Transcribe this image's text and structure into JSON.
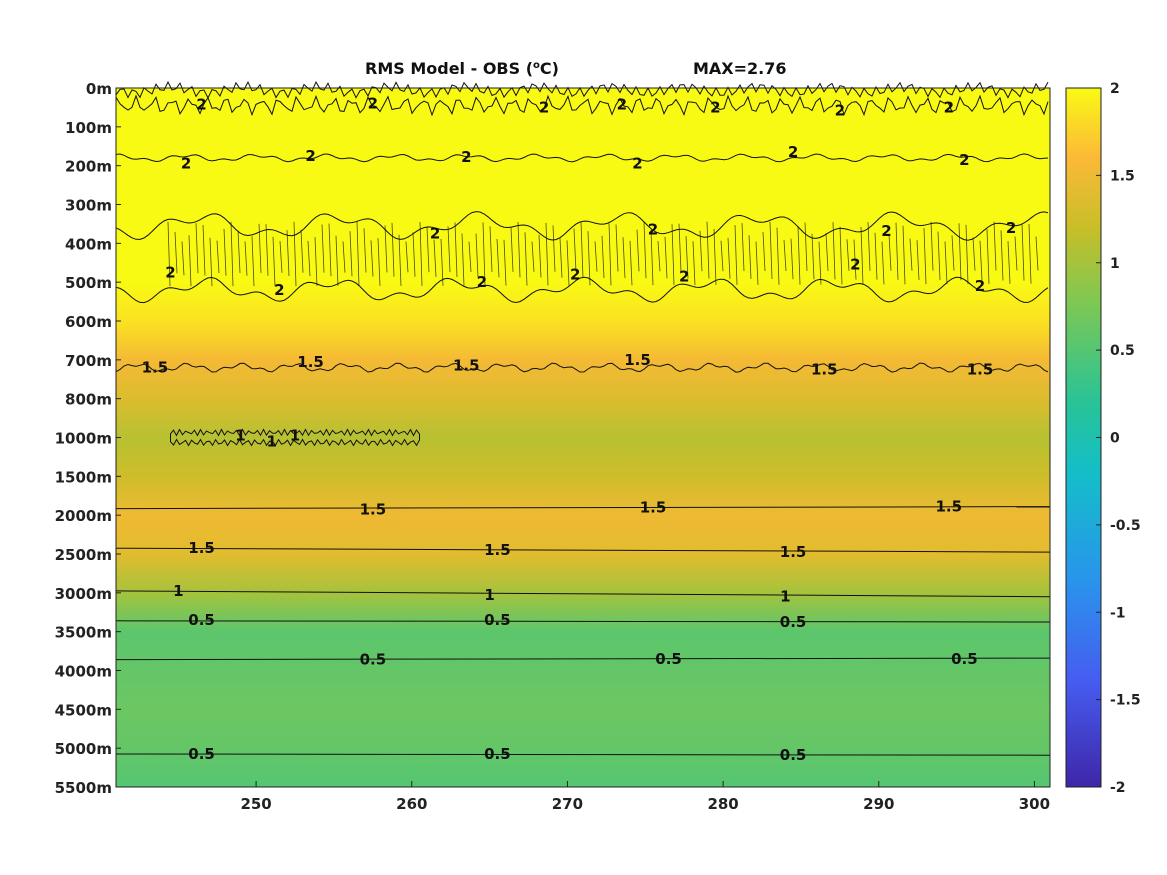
{
  "title": {
    "prefix": "RMS Model - OBS (",
    "superscript": "o",
    "suffix": "C)",
    "max_label": "MAX=2.76"
  },
  "colors": {
    "yellow": "#f9fa14",
    "orange": "#fbba3d",
    "olive": "#cdc12b",
    "green": "#76c75e",
    "teal": "#2bc492",
    "contour": "#111111"
  },
  "chart_data": {
    "type": "heatmap",
    "title": "RMS Model - OBS (oC)   MAX=2.76",
    "x_ticks": [
      250,
      260,
      270,
      280,
      290,
      300
    ],
    "xlim": [
      241,
      301
    ],
    "y_ticks": [
      "0m",
      "100m",
      "200m",
      "300m",
      "400m",
      "500m",
      "600m",
      "700m",
      "800m",
      "1000m",
      "1500m",
      "2000m",
      "2500m",
      "3000m",
      "3500m",
      "4000m",
      "4500m",
      "5000m",
      "5500m"
    ],
    "y_reversed": true,
    "colorbar": {
      "min": -2,
      "max": 2,
      "ticks": [
        "2",
        "1.5",
        "1",
        "0.5",
        "0",
        "-0.5",
        "-1",
        "-1.5",
        "-2"
      ],
      "colormap": "parula"
    },
    "max_value": 2.76,
    "depth_profile": [
      {
        "depth": "0m",
        "value": 2.3
      },
      {
        "depth": "100m",
        "value": 2.05
      },
      {
        "depth": "200m",
        "value": 2.0
      },
      {
        "depth": "300m",
        "value": 2.1
      },
      {
        "depth": "400m",
        "value": 2.05
      },
      {
        "depth": "500m",
        "value": 2.0
      },
      {
        "depth": "600m",
        "value": 1.85
      },
      {
        "depth": "700m",
        "value": 1.55
      },
      {
        "depth": "800m",
        "value": 1.35
      },
      {
        "depth": "1000m",
        "value": 1.1
      },
      {
        "depth": "1500m",
        "value": 1.25
      },
      {
        "depth": "2000m",
        "value": 1.5
      },
      {
        "depth": "2500m",
        "value": 1.4
      },
      {
        "depth": "3000m",
        "value": 1.0
      },
      {
        "depth": "3500m",
        "value": 0.55
      },
      {
        "depth": "4000m",
        "value": 0.6
      },
      {
        "depth": "4500m",
        "value": 0.65
      },
      {
        "depth": "5000m",
        "value": 0.6
      },
      {
        "depth": "5500m",
        "value": 0.5
      }
    ],
    "contour_labels": [
      {
        "text": "2",
        "x": 246.5,
        "depth_index": 0.42
      },
      {
        "text": "2",
        "x": 257.5,
        "depth_index": 0.4
      },
      {
        "text": "2",
        "x": 268.5,
        "depth_index": 0.5
      },
      {
        "text": "2",
        "x": 273.5,
        "depth_index": 0.42
      },
      {
        "text": "2",
        "x": 279.5,
        "depth_index": 0.5
      },
      {
        "text": "2",
        "x": 287.5,
        "depth_index": 0.58
      },
      {
        "text": "2",
        "x": 294.5,
        "depth_index": 0.5
      },
      {
        "text": "2",
        "x": 245.5,
        "depth_index": 1.95
      },
      {
        "text": "2",
        "x": 253.5,
        "depth_index": 1.75
      },
      {
        "text": "2",
        "x": 263.5,
        "depth_index": 1.78
      },
      {
        "text": "2",
        "x": 274.5,
        "depth_index": 1.95
      },
      {
        "text": "2",
        "x": 284.5,
        "depth_index": 1.65
      },
      {
        "text": "2",
        "x": 295.5,
        "depth_index": 1.85
      },
      {
        "text": "2",
        "x": 261.5,
        "depth_index": 3.75
      },
      {
        "text": "2",
        "x": 275.5,
        "depth_index": 3.65
      },
      {
        "text": "2",
        "x": 290.5,
        "depth_index": 3.68
      },
      {
        "text": "2",
        "x": 298.5,
        "depth_index": 3.6
      },
      {
        "text": "2",
        "x": 244.5,
        "depth_index": 4.75
      },
      {
        "text": "2",
        "x": 251.5,
        "depth_index": 5.2
      },
      {
        "text": "2",
        "x": 264.5,
        "depth_index": 5.0
      },
      {
        "text": "2",
        "x": 270.5,
        "depth_index": 4.8
      },
      {
        "text": "2",
        "x": 277.5,
        "depth_index": 4.85
      },
      {
        "text": "2",
        "x": 288.5,
        "depth_index": 4.55
      },
      {
        "text": "2",
        "x": 296.5,
        "depth_index": 5.1
      },
      {
        "text": "1.5",
        "x": 243.5,
        "depth_index": 7.2
      },
      {
        "text": "1.5",
        "x": 253.5,
        "depth_index": 7.05
      },
      {
        "text": "1.5",
        "x": 263.5,
        "depth_index": 7.15
      },
      {
        "text": "1.5",
        "x": 274.5,
        "depth_index": 7.0
      },
      {
        "text": "1.5",
        "x": 286.5,
        "depth_index": 7.25
      },
      {
        "text": "1.5",
        "x": 296.5,
        "depth_index": 7.25
      },
      {
        "text": "1",
        "x": 249.0,
        "depth_index": 8.95
      },
      {
        "text": "1",
        "x": 251.0,
        "depth_index": 9.1
      },
      {
        "text": "1",
        "x": 252.5,
        "depth_index": 8.95
      },
      {
        "text": "1.5",
        "x": 257.5,
        "depth_index": 10.85
      },
      {
        "text": "1.5",
        "x": 275.5,
        "depth_index": 10.8
      },
      {
        "text": "1.5",
        "x": 294.5,
        "depth_index": 10.78
      },
      {
        "text": "1.5",
        "x": 246.5,
        "depth_index": 11.85
      },
      {
        "text": "1.5",
        "x": 265.5,
        "depth_index": 11.9
      },
      {
        "text": "1.5",
        "x": 284.5,
        "depth_index": 11.95
      },
      {
        "text": "1",
        "x": 245.0,
        "depth_index": 12.95
      },
      {
        "text": "1",
        "x": 265.0,
        "depth_index": 13.05
      },
      {
        "text": "1",
        "x": 284.0,
        "depth_index": 13.1
      },
      {
        "text": "0.5",
        "x": 246.5,
        "depth_index": 13.7
      },
      {
        "text": "0.5",
        "x": 265.5,
        "depth_index": 13.7
      },
      {
        "text": "0.5",
        "x": 284.5,
        "depth_index": 13.75
      },
      {
        "text": "0.5",
        "x": 257.5,
        "depth_index": 14.72
      },
      {
        "text": "0.5",
        "x": 276.5,
        "depth_index": 14.7
      },
      {
        "text": "0.5",
        "x": 295.5,
        "depth_index": 14.7
      },
      {
        "text": "0.5",
        "x": 246.5,
        "depth_index": 17.15
      },
      {
        "text": "0.5",
        "x": 265.5,
        "depth_index": 17.15
      },
      {
        "text": "0.5",
        "x": 284.5,
        "depth_index": 17.18
      }
    ]
  }
}
